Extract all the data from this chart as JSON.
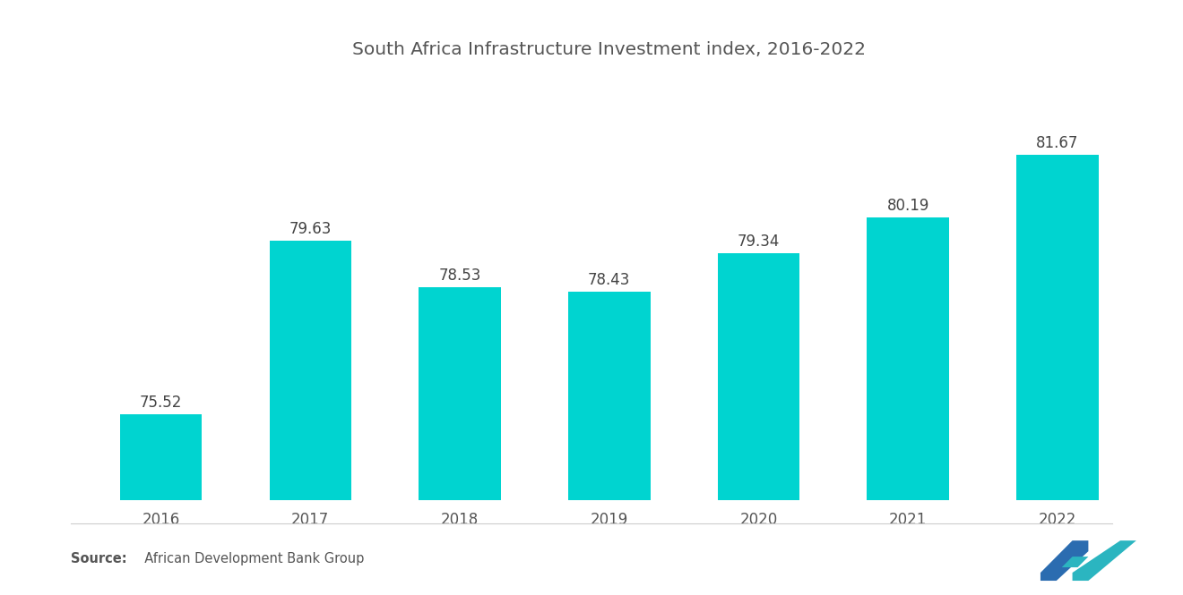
{
  "title": "South Africa Infrastructure Investment index, 2016-2022",
  "categories": [
    "2016",
    "2017",
    "2018",
    "2019",
    "2020",
    "2021",
    "2022"
  ],
  "values": [
    75.52,
    79.63,
    78.53,
    78.43,
    79.34,
    80.19,
    81.67
  ],
  "bar_color": "#00D4D0",
  "background_color": "#ffffff",
  "title_fontsize": 14.5,
  "label_fontsize": 12,
  "tick_fontsize": 12,
  "source_bold": "Source:",
  "source_rest": "  African Development Bank Group",
  "ylim_min": 73.5,
  "ylim_max": 83.5,
  "bar_width": 0.55,
  "text_color": "#555555",
  "label_color": "#444444"
}
